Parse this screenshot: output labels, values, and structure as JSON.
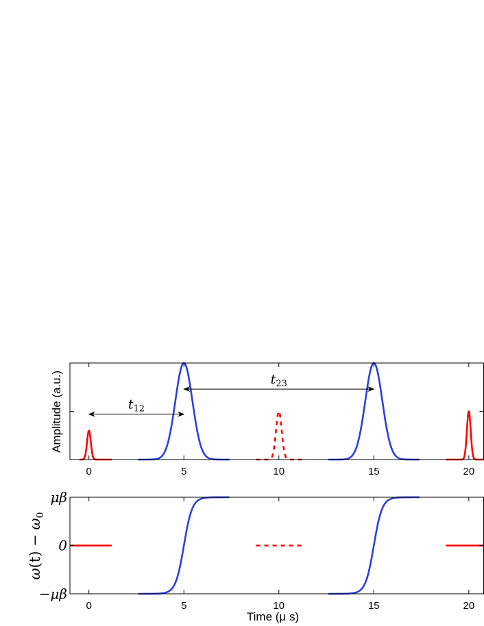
{
  "chart_data": [
    {
      "type": "line",
      "panel": "top",
      "ylabel": "Amplitude (a.u.)",
      "xlim": [
        -1,
        20.8
      ],
      "ylim": [
        0,
        1
      ],
      "x_ticks": [
        0,
        5,
        10,
        15,
        20
      ],
      "x_tick_labels": [
        "0",
        "5",
        "10",
        "15",
        "20"
      ],
      "y_ticks": [
        0,
        0.5,
        1
      ],
      "grid": false,
      "series": [
        {
          "color": "#ff0000",
          "dash": "solid",
          "shape": "gaussian",
          "center": 0,
          "peak": 0.3,
          "sigma": 0.1,
          "x_range": [
            -0.5,
            1.2
          ]
        },
        {
          "color": "#2b3fe0",
          "dash": "solid",
          "shape": "gaussian",
          "center": 5,
          "peak": 1.0,
          "sigma": 0.45,
          "x_range": [
            2.6,
            7.4
          ]
        },
        {
          "color": "#ff0000",
          "dash": "dashed",
          "shape": "gaussian",
          "center": 10,
          "peak": 0.5,
          "sigma": 0.15,
          "x_range": [
            8.8,
            11.2
          ]
        },
        {
          "color": "#2b3fe0",
          "dash": "solid",
          "shape": "gaussian",
          "center": 15,
          "peak": 1.0,
          "sigma": 0.45,
          "x_range": [
            12.6,
            17.4
          ]
        },
        {
          "color": "#ff0000",
          "dash": "solid",
          "shape": "gaussian",
          "center": 20,
          "peak": 0.5,
          "sigma": 0.1,
          "x_range": [
            18.8,
            20.8
          ]
        }
      ],
      "annotations": [
        {
          "label_base": "t",
          "label_sub": "12",
          "from": 0,
          "to": 5,
          "y": 0.47
        },
        {
          "label_base": "t",
          "label_sub": "23",
          "from": 5,
          "to": 15,
          "y": 0.73
        }
      ]
    },
    {
      "type": "line",
      "panel": "bottom",
      "xlabel": "Time (μ s)",
      "ylabel_parts": [
        "ω",
        "(t) − ",
        "ω",
        "0"
      ],
      "xlim": [
        -1,
        20.8
      ],
      "ylim": [
        -1,
        1
      ],
      "x_ticks": [
        0,
        5,
        10,
        15,
        20
      ],
      "x_tick_labels": [
        "0",
        "5",
        "10",
        "15",
        "20"
      ],
      "y_ticks": [
        -1,
        0,
        1
      ],
      "y_tick_labels": [
        "−μβ",
        "0",
        "μβ"
      ],
      "grid": false,
      "series": [
        {
          "color": "#ff0000",
          "dash": "solid",
          "shape": "constant",
          "value": 0,
          "x_range": [
            -1,
            1.2
          ]
        },
        {
          "color": "#2b3fe0",
          "dash": "solid",
          "shape": "sigmoid",
          "center": 5,
          "width": 0.22,
          "x_range": [
            2.6,
            7.4
          ]
        },
        {
          "color": "#ff0000",
          "dash": "dashed",
          "shape": "constant",
          "value": 0,
          "x_range": [
            8.8,
            11.2
          ]
        },
        {
          "color": "#2b3fe0",
          "dash": "solid",
          "shape": "sigmoid",
          "center": 15,
          "width": 0.22,
          "x_range": [
            12.6,
            17.4
          ]
        },
        {
          "color": "#ff0000",
          "dash": "solid",
          "shape": "constant",
          "value": 0,
          "x_range": [
            18.8,
            20.8
          ]
        }
      ]
    }
  ]
}
